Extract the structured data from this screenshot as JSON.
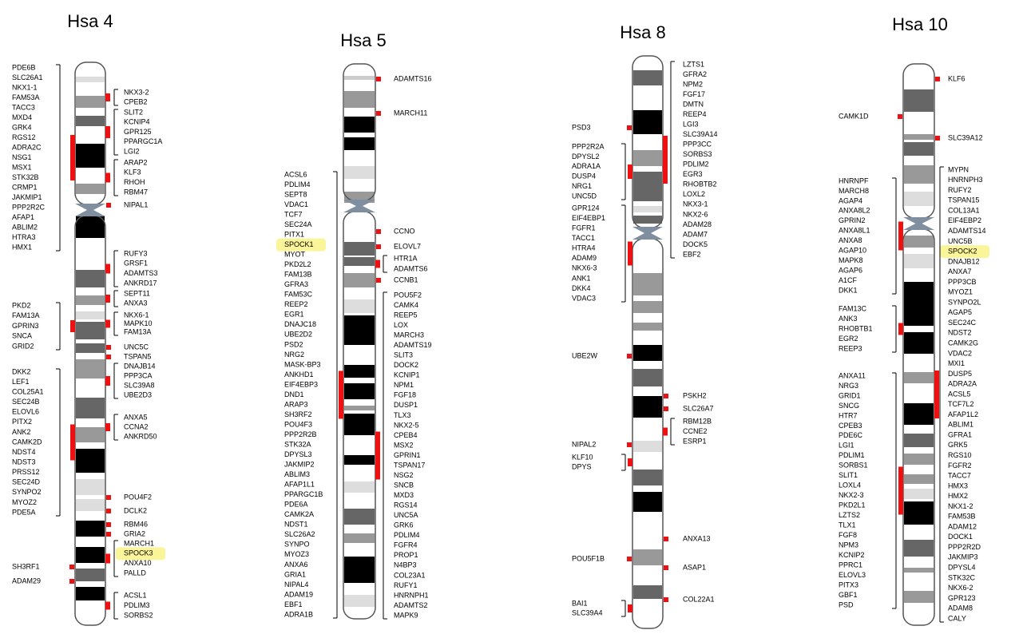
{
  "chromosomes": [
    {
      "title": "Hsa 4",
      "left": [
        [
          "PDE6B",
          "SLC26A1",
          "NKX1-1",
          "FAM53A",
          "TACC3",
          "MXD4",
          "GRK4",
          "RGS12",
          "ADRA2C",
          "NSG1",
          "MSX1",
          "STK32B",
          "CRMP1",
          "JAKMIP1",
          "PPP2R2C",
          "AFAP1",
          "ABLIM2",
          "HTRA3",
          "HMX1"
        ],
        [
          "PKD2",
          "FAM13A",
          "GPRIN3",
          "SNCA",
          "GRID2"
        ],
        [
          "DKK2",
          "LEF1",
          "COL25A1",
          "SEC24B",
          "ELOVL6",
          "PITX2",
          "ANK2",
          "CAMK2D",
          "NDST4",
          "NDST3",
          "PRSS12",
          "SEC24D",
          "SYNPO2",
          "MYOZ2",
          "PDE5A"
        ],
        [
          "SH3RF1"
        ],
        [
          "ADAM29"
        ]
      ],
      "right": [
        [
          "NKX3-2",
          "CPEB2"
        ],
        [
          "SLIT2",
          "KCNIP4",
          "GPR125",
          "PPARGC1A",
          "LGI2"
        ],
        [
          "ARAP2",
          "KLF3",
          "RHOH",
          "RBM47"
        ],
        [
          "NIPAL1"
        ],
        [
          "RUFY3",
          "GRSF1",
          "ADAMTS3",
          "ANKRD17"
        ],
        [
          "SEPT11",
          "ANXA3"
        ],
        [
          "NKX6-1",
          "MAPK10",
          "FAM13A"
        ],
        [
          "UNC5C"
        ],
        [
          "TSPAN5"
        ],
        [
          "DNAJB14",
          "PPP3CA",
          "SLC39A8",
          "UBE2D3"
        ],
        [
          "ANXA5",
          "CCNA2",
          "ANKRD50"
        ],
        [
          "POU4F2"
        ],
        [
          "DCLK2"
        ],
        [
          "RBM46"
        ],
        [
          "GRIA2"
        ],
        [
          "MARCH1",
          "SPOCK3",
          "ANXA10",
          "PALLD"
        ],
        [
          "ACSL1",
          "PDLIM3",
          "SORBS2"
        ]
      ]
    },
    {
      "title": "Hsa 5",
      "left": [
        [
          "ACSL6",
          "PDLIM4",
          "SEPT8",
          "VDAC1",
          "TCF7",
          "SEC24A",
          "PITX1",
          "SPOCK1",
          "MYOT",
          "PKD2L2",
          "FAM13B",
          "GFRA3",
          "FAM53C",
          "REEP2",
          "EGR1",
          "DNAJC18",
          "UBE2D2",
          "PSD2",
          "NRG2",
          "MASK-BP3",
          "ANKHD1",
          "EIF4EBP3",
          "DND1",
          "ARAP3",
          "SH3RF2",
          "POU4F3",
          "PPP2R2B",
          "STK32A",
          "DPYSL3",
          "JAKMIP2",
          "ABLIM3",
          "AFAP1L1",
          "PPARGC1B",
          "PDE6A",
          "CAMK2A",
          "NDST1",
          "SLC26A2",
          "SYNPO",
          "MYOZ3",
          "ANXA6",
          "GRIA1",
          "NIPAL4",
          "ADAM19",
          "EBF1",
          "ADRA1B"
        ]
      ],
      "right": [
        [
          "ADAMTS16"
        ],
        [
          "MARCH11"
        ],
        [
          "CCNO"
        ],
        [
          "ELOVL7"
        ],
        [
          "HTR1A",
          "ADAMTS6"
        ],
        [
          "CCNB1"
        ],
        [
          "POU5F2",
          "CAMK4",
          "REEP5",
          "LOX",
          "MARCH3",
          "ADAMTS19",
          "SLIT3",
          "DOCK2",
          "KCNIP1",
          "NPM1",
          "FGF18",
          "DUSP1",
          "TLX3",
          "NKX2-5",
          "CPEB4",
          "MSX2",
          "GPRIN1",
          "TSPAN17",
          "NSG2",
          "SNCB",
          "MXD3",
          "RGS14",
          "UNC5A",
          "GRK6",
          "PDLIM4",
          "FGFR4",
          "PROP1",
          "N4BP3",
          "COL23A1",
          "RUFY1",
          "HNRNPH1",
          "ADAMTS2",
          "MAPK9"
        ]
      ]
    },
    {
      "title": "Hsa 8",
      "left": [
        [
          "PSD3"
        ],
        [
          "PPP2R2A",
          "DPYSL2",
          "ADRA1A",
          "DUSP4",
          "NRG1",
          "UNC5D"
        ],
        [
          "GPR124",
          "EIF4EBP1",
          "FGFR1",
          "TACC1",
          "HTRA4",
          "ADAM9",
          "NKX6-3",
          "ANK1",
          "DKK4",
          "VDAC3"
        ],
        [
          "UBE2W"
        ],
        [
          "NIPAL2"
        ],
        [
          "KLF10",
          "DPYS"
        ],
        [
          "POU5F1B"
        ],
        [
          "BAI1",
          "SLC39A4"
        ]
      ],
      "right": [
        [
          "LZTS1",
          "GFRA2",
          "NPM2",
          "FGF17",
          "DMTN",
          "REEP4",
          "LGI3",
          "SLC39A14",
          "PPP3CC",
          "SORBS3",
          "PDLIM2",
          "EGR3",
          "RHOBTB2",
          "LOXL2",
          "NKX3-1",
          "NKX2-6",
          "ADAM28",
          "ADAM7",
          "DOCK5",
          "EBF2"
        ],
        [
          "PSKH2"
        ],
        [
          "SLC26A7"
        ],
        [
          "RBM12B",
          "CCNE2",
          "ESRP1"
        ],
        [
          "ANXA13"
        ],
        [
          "ASAP1"
        ],
        [
          "COL22A1"
        ]
      ]
    },
    {
      "title": "Hsa 10",
      "left": [
        [
          "CAMK1D"
        ],
        [
          "HNRNPF",
          "MARCH8",
          "AGAP4",
          "ANXA8L2",
          "GPRIN2",
          "ANXA8L1",
          "ANXA8",
          "AGAP10",
          "MAPK8",
          "AGAP6",
          "A1CF",
          "DKK1"
        ],
        [
          "FAM13C",
          "ANK3",
          "RHOBTB1",
          "EGR2",
          "REEP3"
        ],
        [
          "ANXA11",
          "NRG3",
          "GRID1",
          "SNCG",
          "HTR7",
          "CPEB3",
          "PDE6C",
          "LGI1",
          "PDLIM1",
          "SORBS1",
          "SLIT1",
          "LOXL4",
          "NKX2-3",
          "PKD2L1",
          "LZTS2",
          "TLX1",
          "FGF8",
          "NPM3",
          "KCNIP2",
          "PPRC1",
          "ELOVL3",
          "PITX3",
          "GBF1",
          "PSD"
        ]
      ],
      "right": [
        [
          "KLF6"
        ],
        [
          "SLC39A12"
        ],
        [
          "MYPN",
          "HNRNPH3",
          "RUFY2",
          "TSPAN15",
          "COL13A1",
          "EIF4EBP2",
          "ADAMTS14",
          "UNC5B",
          "SPOCK2",
          "DNAJB12",
          "ANXA7",
          "PPP3CB",
          "MYOZ1",
          "SYNPO2L",
          "AGAP5",
          "SEC24C",
          "NDST2",
          "CAMK2G",
          "VDAC2",
          "MXI1",
          "DUSP5",
          "ADRA2A",
          "ACSL5",
          "TCF7L2",
          "AFAP1L2",
          "ABLIM1",
          "GFRA1",
          "GRK5",
          "RGS10",
          "FGFR2",
          "TACC7",
          "HMX3",
          "HMX2",
          "NKX1-2",
          "FAM53B",
          "ADAM12",
          "DOCK1",
          "PPP2R2D",
          "JAKMIP3",
          "DPYSL4",
          "STK32C",
          "NKX6-2",
          "GPR123",
          "ADAM8",
          "CALY"
        ]
      ]
    }
  ]
}
